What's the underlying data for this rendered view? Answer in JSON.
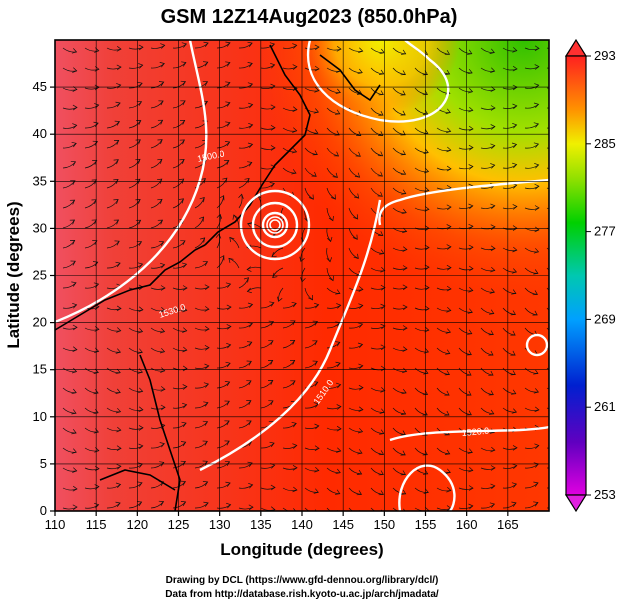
{
  "chart_data": {
    "type": "heatmap",
    "title": "GSM 12Z14Aug2023 (850.0hPa)",
    "xlabel": "Longitude (degrees)",
    "ylabel": "Latitude  (degrees)",
    "xlim": [
      110,
      170
    ],
    "ylim": [
      0,
      50
    ],
    "xticks": [
      "110",
      "115",
      "120",
      "125",
      "130",
      "135",
      "140",
      "145",
      "150",
      "155",
      "160",
      "165"
    ],
    "yticks": [
      "0",
      "5",
      "10",
      "15",
      "20",
      "25",
      "30",
      "35",
      "40",
      "45"
    ],
    "colorbar": {
      "range": [
        253,
        293
      ],
      "ticks": [
        "293",
        "285",
        "277",
        "269",
        "261",
        "253"
      ],
      "colors": [
        "#d400d4",
        "#1a00c8",
        "#0a6cff",
        "#00c8c8",
        "#00c800",
        "#8ee000",
        "#f0f000",
        "#ff9a00",
        "#ff3a00",
        "#ff1a30"
      ]
    },
    "contour_labels": [
      "1530.0",
      "1500.0",
      "1520.0",
      "1510.0"
    ],
    "features": {
      "typhoon_center": {
        "lon": 136,
        "lat": 32.5
      }
    }
  },
  "credits": {
    "line1": "Drawing by DCL (https://www.gfd-dennou.org/library/dcl/)",
    "line2": "Data from http://database.rish.kyoto-u.ac.jp/arch/jmadata/"
  }
}
